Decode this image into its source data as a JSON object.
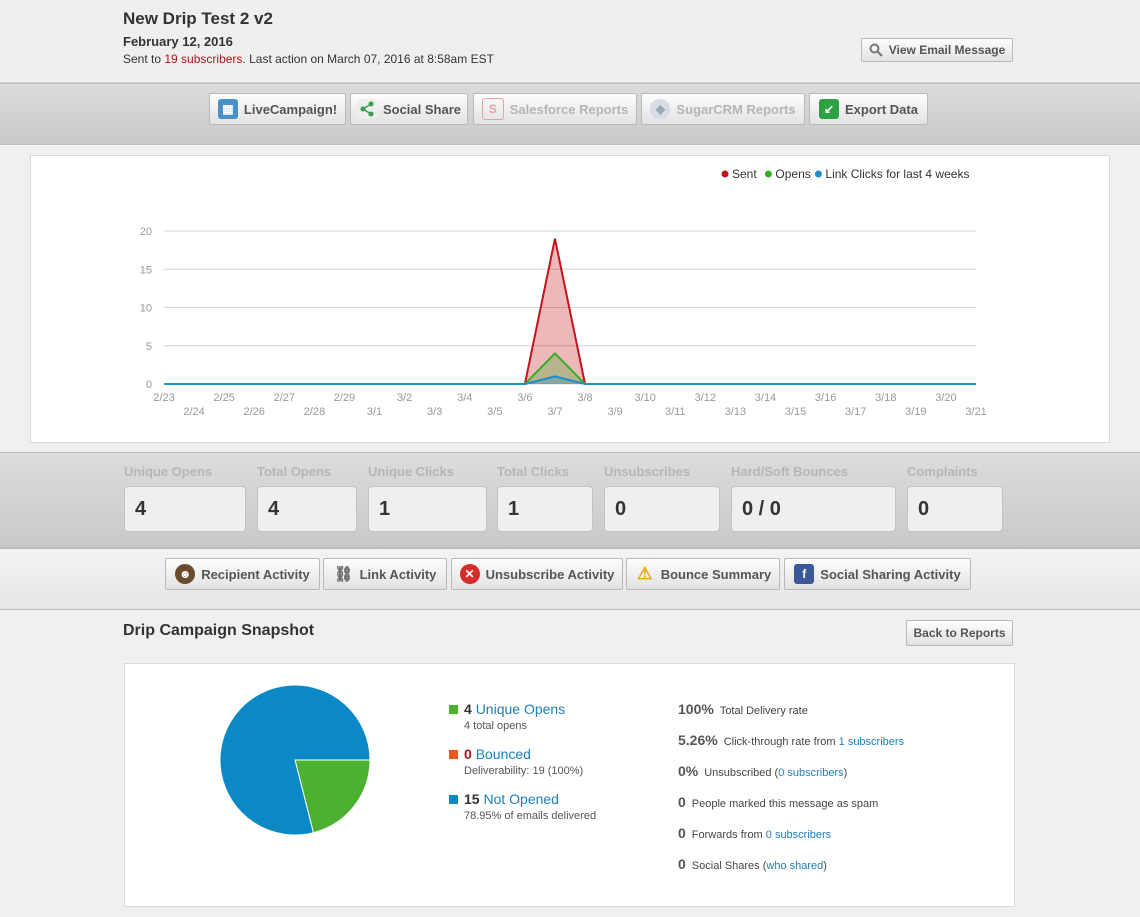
{
  "header": {
    "title": "New Drip Test 2 v2",
    "date": "February 12, 2016",
    "sent_prefix": "Sent to ",
    "subscribers_link": "19 subscribers",
    "sent_suffix": ". Last action on March 07, 2016 at 8:58am EST",
    "view_email_label": "View Email Message"
  },
  "toolbar": {
    "livecampaign": "LiveCampaign!",
    "social_share": "Social Share",
    "salesforce": "Salesforce Reports",
    "sugarcrm": "SugarCRM Reports",
    "export": "Export Data"
  },
  "chart_data": {
    "type": "area",
    "legend": {
      "sent": "Sent",
      "opens": "Opens",
      "clicks": "Link Clicks",
      "suffix": " for last 4 weeks",
      "placement": "top-right"
    },
    "x": [
      "2/23",
      "2/24",
      "2/25",
      "2/26",
      "2/27",
      "2/28",
      "2/29",
      "3/1",
      "3/2",
      "3/3",
      "3/4",
      "3/5",
      "3/6",
      "3/7",
      "3/8",
      "3/9",
      "3/10",
      "3/11",
      "3/12",
      "3/13",
      "3/14",
      "3/15",
      "3/16",
      "3/17",
      "3/18",
      "3/19",
      "3/20",
      "3/21"
    ],
    "series": [
      {
        "name": "Sent",
        "color": "#c0151b",
        "values": [
          0,
          0,
          0,
          0,
          0,
          0,
          0,
          0,
          0,
          0,
          0,
          0,
          0,
          19,
          0,
          0,
          0,
          0,
          0,
          0,
          0,
          0,
          0,
          0,
          0,
          0,
          0,
          0
        ]
      },
      {
        "name": "Opens",
        "color": "#3aab27",
        "values": [
          0,
          0,
          0,
          0,
          0,
          0,
          0,
          0,
          0,
          0,
          0,
          0,
          0,
          4,
          0,
          0,
          0,
          0,
          0,
          0,
          0,
          0,
          0,
          0,
          0,
          0,
          0,
          0
        ]
      },
      {
        "name": "Link Clicks",
        "color": "#1a8fcc",
        "values": [
          0,
          0,
          0,
          0,
          0,
          0,
          0,
          0,
          0,
          0,
          0,
          0,
          0,
          1,
          0,
          0,
          0,
          0,
          0,
          0,
          0,
          0,
          0,
          0,
          0,
          0,
          0,
          0
        ]
      }
    ],
    "yticks": [
      0,
      5,
      10,
      15,
      20
    ],
    "ylim": [
      0,
      20
    ],
    "grid": true
  },
  "stats": [
    {
      "label": "Unique Opens",
      "value": "4"
    },
    {
      "label": "Total Opens",
      "value": "4"
    },
    {
      "label": "Unique Clicks",
      "value": "1"
    },
    {
      "label": "Total Clicks",
      "value": "1"
    },
    {
      "label": "Unsubscribes",
      "value": "0"
    },
    {
      "label": "Hard/Soft Bounces",
      "value": "0 / 0"
    },
    {
      "label": "Complaints",
      "value": "0"
    }
  ],
  "activity": {
    "recipient": "Recipient Activity",
    "link": "Link Activity",
    "unsubscribe": "Unsubscribe Activity",
    "bounce": "Bounce Summary",
    "social": "Social Sharing Activity"
  },
  "snapshot": {
    "title": "Drip Campaign Snapshot",
    "back_label": "Back to Reports",
    "pie": [
      {
        "name": "Unique Opens",
        "value": 4,
        "color": "#4cb131"
      },
      {
        "name": "Not Opened",
        "value": 15,
        "color": "#0b89c6"
      }
    ],
    "legend": [
      {
        "num": "4",
        "label": "Unique Opens",
        "sub": "4 total opens",
        "color": "#4cb131",
        "num_color": "#333"
      },
      {
        "num": "0",
        "label": "Bounced",
        "sub": "Deliverability: 19 (100%)",
        "color": "#e8571f",
        "num_color": "#b3131b"
      },
      {
        "num": "15",
        "label": "Not Opened",
        "sub": "78.95% of emails delivered",
        "color": "#0b89c6",
        "num_color": "#333"
      }
    ],
    "metrics": {
      "delivery_value": "100%",
      "delivery_label": "Total Delivery rate",
      "ctr_value": "5.26%",
      "ctr_label": "Click-through rate from ",
      "ctr_link": "1 subscribers",
      "unsub_value": "0%",
      "unsub_label": "Unsubscribed (",
      "unsub_link": "0 subscribers",
      "unsub_close": ")",
      "spam_value": "0",
      "spam_label": "People marked this message as spam",
      "fwd_value": "0",
      "fwd_label": "Forwards from ",
      "fwd_link": "0 subscribers",
      "share_value": "0",
      "share_label": "Social Shares (",
      "share_link": "who shared",
      "share_close": ")"
    }
  }
}
